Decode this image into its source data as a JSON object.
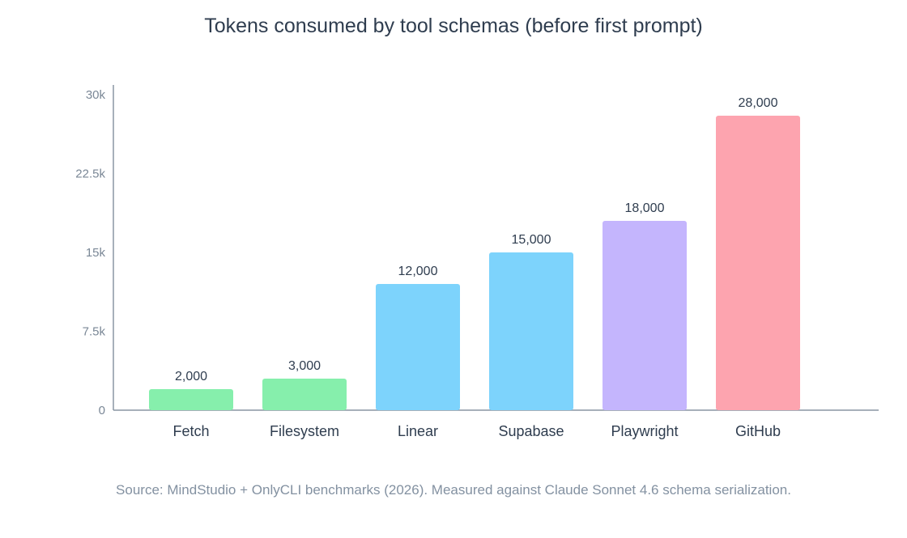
{
  "chart_data": {
    "type": "bar",
    "title": "Tokens consumed by tool schemas (before first prompt)",
    "categories": [
      "Fetch",
      "Filesystem",
      "Linear",
      "Supabase",
      "Playwright",
      "GitHub"
    ],
    "values": [
      2000,
      3000,
      12000,
      15000,
      18000,
      28000
    ],
    "value_labels": [
      "2,000",
      "3,000",
      "12,000",
      "15,000",
      "18,000",
      "28,000"
    ],
    "colors": [
      "#86efac",
      "#86efac",
      "#7dd3fc",
      "#7dd3fc",
      "#c4b5fd",
      "#fda4af"
    ],
    "ylim": [
      0,
      30000
    ],
    "yticks": [
      0,
      7500,
      15000,
      22500,
      30000
    ],
    "ytick_labels": [
      "0",
      "7.5k",
      "15k",
      "22.5k",
      "30k"
    ],
    "xlabel": "",
    "ylabel": "",
    "grid": false,
    "source": "Source: MindStudio + OnlyCLI benchmarks (2026). Measured against Claude Sonnet 4.6 schema serialization."
  }
}
